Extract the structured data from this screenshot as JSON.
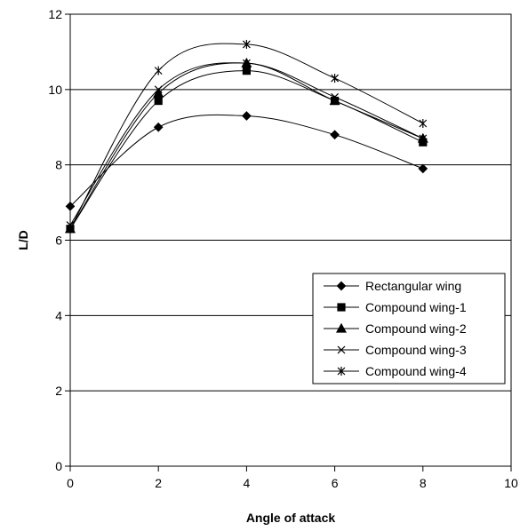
{
  "chart_data": {
    "type": "line",
    "xlabel": "Angle of attack",
    "ylabel": "L/D",
    "xlim": [
      0,
      10
    ],
    "ylim": [
      0,
      12
    ],
    "x_ticks": [
      "0",
      "2",
      "4",
      "6",
      "8",
      "10"
    ],
    "y_ticks": [
      "0",
      "2",
      "4",
      "6",
      "8",
      "10",
      "12"
    ],
    "grid": "horizontal",
    "legend_position": "right-center",
    "smooth": true,
    "series": [
      {
        "name": "Rectangular wing",
        "marker": "diamond",
        "x": [
          0,
          2,
          4,
          6,
          8
        ],
        "y": [
          6.9,
          9.0,
          9.3,
          8.8,
          7.9
        ]
      },
      {
        "name": "Compound wing-1",
        "marker": "square",
        "x": [
          0,
          2,
          4,
          6,
          8
        ],
        "y": [
          6.3,
          9.7,
          10.5,
          9.7,
          8.6
        ]
      },
      {
        "name": "Compound wing-2",
        "marker": "triangle",
        "x": [
          0,
          2,
          4,
          6,
          8
        ],
        "y": [
          6.3,
          9.9,
          10.7,
          9.7,
          8.7
        ]
      },
      {
        "name": "Compound wing-3",
        "marker": "x",
        "x": [
          0,
          2,
          4,
          6,
          8
        ],
        "y": [
          6.4,
          10.0,
          10.7,
          9.8,
          8.7
        ]
      },
      {
        "name": "Compound wing-4",
        "marker": "asterisk",
        "x": [
          0,
          2,
          4,
          6,
          8
        ],
        "y": [
          6.3,
          10.5,
          11.2,
          10.3,
          9.1
        ]
      }
    ],
    "colors": {
      "line": "#000000",
      "grid": "#000000",
      "background": "#ffffff"
    }
  }
}
